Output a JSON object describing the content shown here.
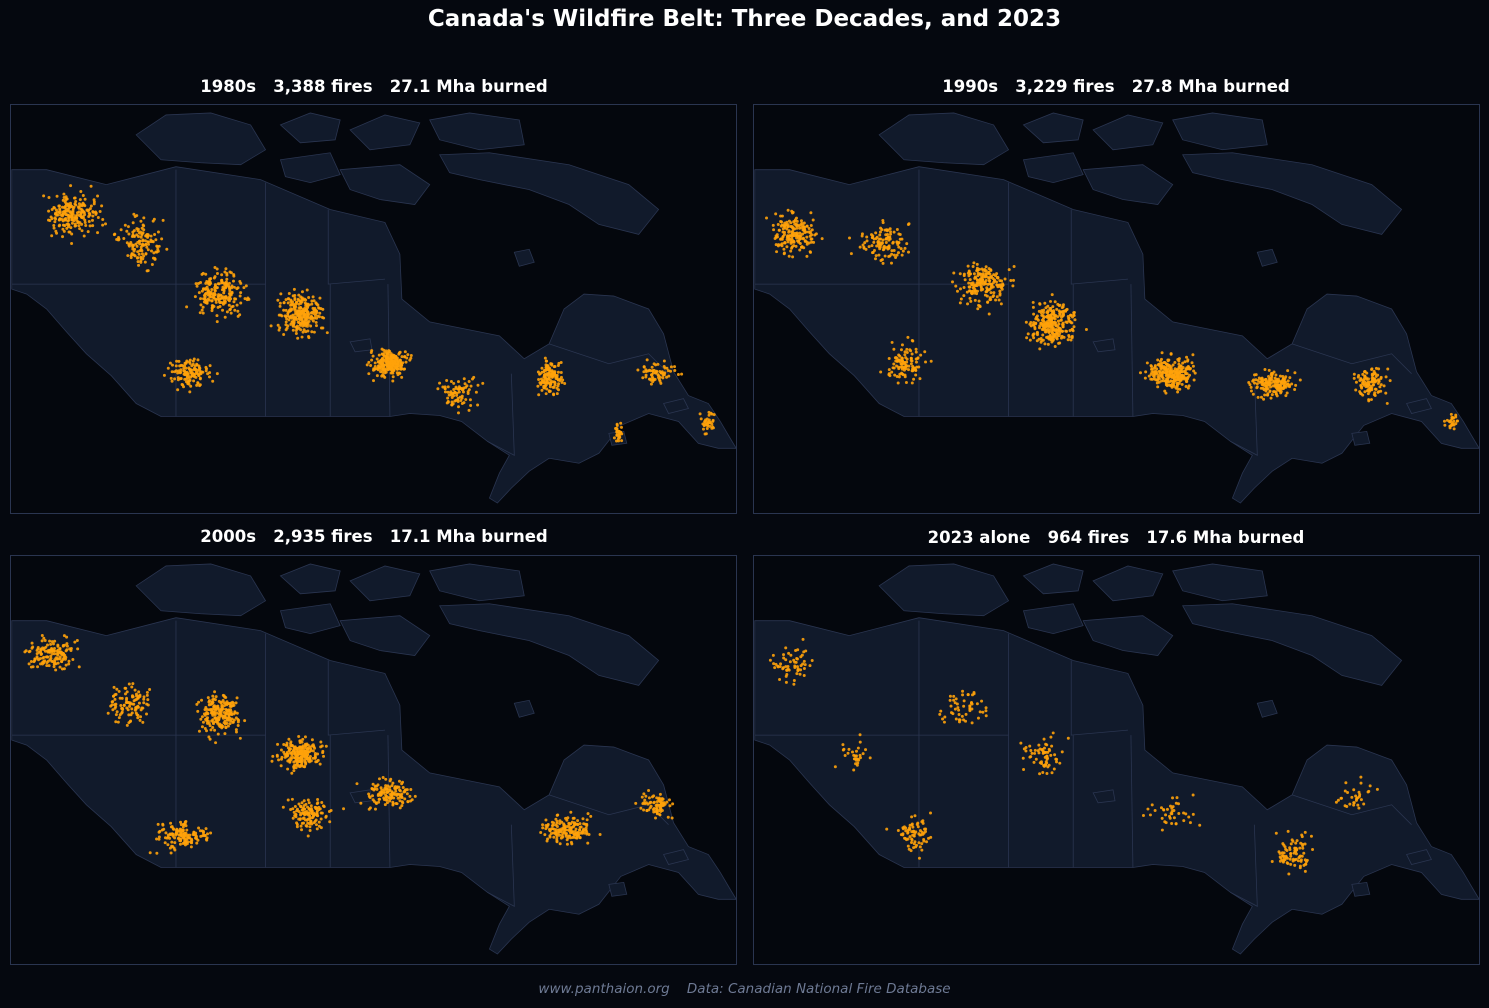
{
  "title": "Canada's Wildfire Belt: Three Decades, and 2023",
  "colors": {
    "background": "#05080f",
    "land": "#111a2b",
    "border": "#2a3550",
    "fire": "#ffa20a",
    "water": "#04070d"
  },
  "panels": [
    {
      "id": "1980s",
      "title": "1980s   3,388 fires   27.1 Mha burned",
      "fires": 3388,
      "burned_mha": 27.1
    },
    {
      "id": "1990s",
      "title": "1990s   3,229 fires   27.8 Mha burned",
      "fires": 3229,
      "burned_mha": 27.8
    },
    {
      "id": "2000s",
      "title": "2000s   2,935 fires   17.1 Mha burned",
      "fires": 2935,
      "burned_mha": 17.1
    },
    {
      "id": "2023",
      "title": "2023 alone   964 fires   17.6 Mha burned",
      "fires": 964,
      "burned_mha": 17.6
    }
  ],
  "footer": {
    "site": "www.panthaion.org",
    "source": "Data: Canadian National Fire Database"
  }
}
